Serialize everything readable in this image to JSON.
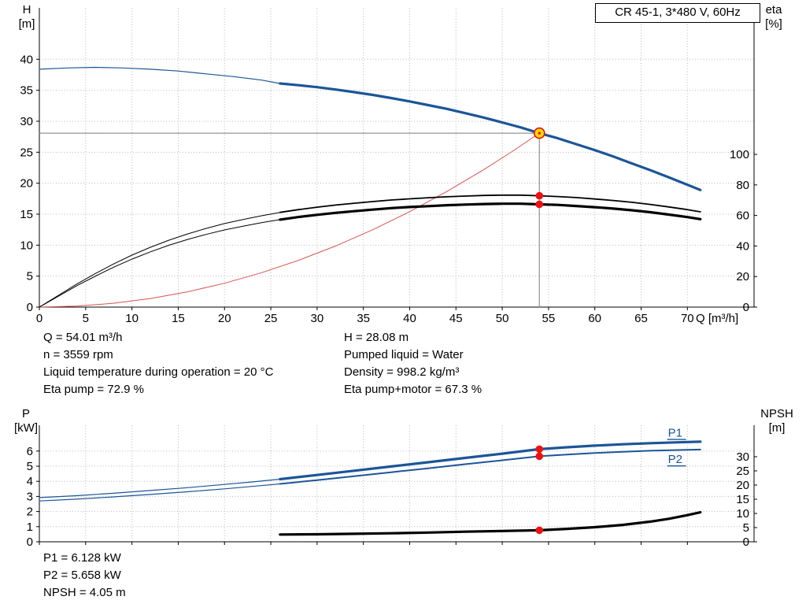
{
  "title_box": {
    "text": "CR 45-1, 3*480 V, 60Hz"
  },
  "colors": {
    "curve_blue": "#1c5598",
    "curve_black": "#000000",
    "system_red": "#d9534f",
    "dot_red": "#ee1111",
    "duty_fill": "#ffd800",
    "duty_ring": "#e01010",
    "duty_line_gray": "#7a7a7a",
    "grid": "#b8b8b8",
    "axis": "#000000"
  },
  "info_top": {
    "left": [
      "Q = 54.01 m³/h",
      "n = 3559 rpm",
      "Liquid temperature during operation = 20 °C",
      "Eta pump = 72.9 %"
    ],
    "right": [
      "H = 28.08 m",
      "Pumped liquid = Water",
      "Density = 998.2 kg/m³",
      "Eta pump+motor = 67.3 %"
    ]
  },
  "info_bottom": [
    "P1 = 6.128 kW",
    "P2 = 5.658 kW",
    "NPSH = 4.05 m"
  ],
  "chart_data": [
    {
      "type": "line",
      "name": "head-and-efficiency-chart",
      "title": "CR 45-1, 3*480 V, 60Hz",
      "duty_point": {
        "Q": 54.01,
        "H": 28.08,
        "eta_pump": 72.9,
        "eta_pump_motor": 67.3
      },
      "x": {
        "label": "Q [m³/h]",
        "min": 0,
        "max": 77.2,
        "ticks": [
          0,
          5,
          10,
          15,
          20,
          25,
          30,
          35,
          40,
          45,
          50,
          55,
          60,
          65,
          70
        ],
        "show_labels": true
      },
      "yl": {
        "label_line1": "H",
        "label_line2": "[m]",
        "min": 0,
        "max": 48.3,
        "ticks": [
          0,
          5,
          10,
          15,
          20,
          25,
          30,
          35,
          40
        ]
      },
      "yr": {
        "label_line1": "eta",
        "label_line2": "[%]",
        "min": 0,
        "max": 195.9,
        "ticks": [
          0,
          20,
          40,
          60,
          80,
          100
        ]
      },
      "series": [
        {
          "name": "duty-head-line",
          "axis": "yl",
          "color": "#7a7a7a",
          "width": 1,
          "points": [
            [
              0,
              28.08
            ],
            [
              54.01,
              28.08
            ]
          ]
        },
        {
          "name": "duty-flow-line",
          "axis": "yl",
          "color": "#7a7a7a",
          "width": 1,
          "points": [
            [
              54.01,
              0
            ],
            [
              54.01,
              28.08
            ]
          ]
        },
        {
          "name": "system-curve",
          "axis": "yl",
          "color": "#d9534f",
          "width": 1,
          "points": [
            [
              0,
              0
            ],
            [
              4,
              0.15
            ],
            [
              8,
              0.62
            ],
            [
              12,
              1.39
            ],
            [
              16,
              2.46
            ],
            [
              20,
              3.85
            ],
            [
              24,
              5.55
            ],
            [
              28,
              7.55
            ],
            [
              32,
              9.86
            ],
            [
              36,
              12.48
            ],
            [
              40,
              15.41
            ],
            [
              44,
              18.64
            ],
            [
              48,
              22.19
            ],
            [
              51,
              25.04
            ],
            [
              54.01,
              28.08
            ]
          ]
        },
        {
          "name": "eta-pump-curve-low",
          "axis": "yr",
          "color": "#000000",
          "width": 1,
          "points": [
            [
              0,
              0
            ],
            [
              2,
              7.5
            ],
            [
              4,
              14.9
            ],
            [
              6,
              21.8
            ],
            [
              8,
              28.2
            ],
            [
              10,
              34.0
            ],
            [
              12,
              39.2
            ],
            [
              14,
              43.8
            ],
            [
              16,
              47.9
            ],
            [
              18,
              51.5
            ],
            [
              20,
              54.7
            ],
            [
              22,
              57.4
            ],
            [
              24,
              59.8
            ],
            [
              26,
              62.0
            ]
          ]
        },
        {
          "name": "eta-pump-motor-curve-low",
          "axis": "yr",
          "color": "#000000",
          "width": 1,
          "points": [
            [
              0,
              0
            ],
            [
              2,
              6.9
            ],
            [
              4,
              13.8
            ],
            [
              6,
              20.1
            ],
            [
              8,
              26.1
            ],
            [
              10,
              31.4
            ],
            [
              12,
              36.2
            ],
            [
              14,
              40.5
            ],
            [
              16,
              44.3
            ],
            [
              18,
              47.6
            ],
            [
              20,
              50.5
            ],
            [
              22,
              53.0
            ],
            [
              24,
              55.3
            ],
            [
              26,
              57.3
            ]
          ]
        },
        {
          "name": "eta-pump-curve",
          "axis": "yr",
          "color": "#000000",
          "width": 1.8,
          "points": [
            [
              26,
              62.0
            ],
            [
              28,
              63.8
            ],
            [
              30,
              65.4
            ],
            [
              32,
              66.8
            ],
            [
              34,
              68.0
            ],
            [
              36,
              69.1
            ],
            [
              38,
              70.1
            ],
            [
              40,
              70.9
            ],
            [
              42,
              71.6
            ],
            [
              44,
              72.2
            ],
            [
              46,
              72.7
            ],
            [
              48,
              73.1
            ],
            [
              50,
              73.3
            ],
            [
              52,
              73.3
            ],
            [
              54.01,
              72.9
            ],
            [
              56,
              72.4
            ],
            [
              58,
              71.7
            ],
            [
              60,
              70.8
            ],
            [
              62,
              69.8
            ],
            [
              64,
              68.6
            ],
            [
              66,
              67.2
            ],
            [
              68,
              65.6
            ],
            [
              70,
              63.8
            ],
            [
              71.4,
              62.4
            ]
          ]
        },
        {
          "name": "eta-pump-motor-curve",
          "axis": "yr",
          "color": "#000000",
          "width": 3.2,
          "points": [
            [
              26,
              57.3
            ],
            [
              28,
              59.0
            ],
            [
              30,
              60.4
            ],
            [
              32,
              61.7
            ],
            [
              34,
              62.8
            ],
            [
              36,
              63.8
            ],
            [
              38,
              64.8
            ],
            [
              40,
              65.5
            ],
            [
              42,
              66.1
            ],
            [
              44,
              66.7
            ],
            [
              46,
              67.1
            ],
            [
              48,
              67.5
            ],
            [
              50,
              67.7
            ],
            [
              52,
              67.7
            ],
            [
              54.01,
              67.3
            ],
            [
              56,
              66.9
            ],
            [
              58,
              66.2
            ],
            [
              60,
              65.4
            ],
            [
              62,
              64.5
            ],
            [
              64,
              63.4
            ],
            [
              66,
              62.1
            ],
            [
              68,
              60.6
            ],
            [
              70,
              58.9
            ],
            [
              71.4,
              57.6
            ]
          ]
        },
        {
          "name": "head-curve-low",
          "axis": "yl",
          "color": "#1c5598",
          "width": 1.2,
          "points": [
            [
              0,
              38.4
            ],
            [
              3,
              38.6
            ],
            [
              6,
              38.7
            ],
            [
              9,
              38.6
            ],
            [
              12,
              38.4
            ],
            [
              15,
              38.1
            ],
            [
              18,
              37.65
            ],
            [
              21,
              37.2
            ],
            [
              24,
              36.65
            ],
            [
              26,
              36.1
            ]
          ]
        },
        {
          "name": "head-curve",
          "axis": "yl",
          "color": "#1c5598",
          "width": 3.2,
          "points": [
            [
              26,
              36.1
            ],
            [
              28,
              35.82
            ],
            [
              30,
              35.5
            ],
            [
              32,
              35.12
            ],
            [
              34,
              34.7
            ],
            [
              36,
              34.25
            ],
            [
              38,
              33.75
            ],
            [
              40,
              33.2
            ],
            [
              42,
              32.6
            ],
            [
              44,
              32.0
            ],
            [
              46,
              31.3
            ],
            [
              48,
              30.6
            ],
            [
              50,
              29.8
            ],
            [
              52,
              29.0
            ],
            [
              54.01,
              28.08
            ],
            [
              56,
              27.25
            ],
            [
              58,
              26.3
            ],
            [
              60,
              25.35
            ],
            [
              62,
              24.3
            ],
            [
              64,
              23.2
            ],
            [
              66,
              22.1
            ],
            [
              68,
              20.95
            ],
            [
              70,
              19.75
            ],
            [
              71.4,
              18.9
            ]
          ]
        }
      ],
      "markers": [
        {
          "type": "dot",
          "q": 54.01,
          "v": 72.9,
          "axis": "yr"
        },
        {
          "type": "dot",
          "q": 54.01,
          "v": 67.3,
          "axis": "yr"
        },
        {
          "type": "duty",
          "q": 54.01,
          "v": 28.08,
          "axis": "yl"
        }
      ],
      "labels": []
    },
    {
      "type": "line",
      "name": "power-and-npsh-chart",
      "duty_point": {
        "Q": 54.01,
        "P1_kW": 6.128,
        "P2_kW": 5.658,
        "NPSH_m": 4.05
      },
      "x": {
        "label": "",
        "min": 0,
        "max": 77.2,
        "ticks": [
          0,
          5,
          10,
          15,
          20,
          25,
          30,
          35,
          40,
          45,
          50,
          55,
          60,
          65,
          70
        ],
        "show_labels": false
      },
      "yl": {
        "label_line1": "P",
        "label_line2": "[kW]",
        "min": 0,
        "max": 7.71,
        "ticks": [
          0,
          1,
          2,
          3,
          4,
          5,
          6
        ]
      },
      "yr": {
        "label_line1": "NPSH",
        "label_line2": "[m]",
        "min": 0,
        "max": 41.1,
        "ticks": [
          0,
          5,
          10,
          15,
          20,
          25,
          30
        ]
      },
      "series": [
        {
          "name": "p2-curve-low",
          "axis": "yl",
          "color": "#1c5598",
          "width": 1.2,
          "points": [
            [
              0,
              2.7
            ],
            [
              4,
              2.82
            ],
            [
              8,
              2.97
            ],
            [
              12,
              3.13
            ],
            [
              16,
              3.31
            ],
            [
              20,
              3.5
            ],
            [
              23,
              3.66
            ],
            [
              26,
              3.83
            ]
          ]
        },
        {
          "name": "p1-curve-low",
          "axis": "yl",
          "color": "#1c5598",
          "width": 1.2,
          "points": [
            [
              0,
              2.92
            ],
            [
              4,
              3.05
            ],
            [
              8,
              3.21
            ],
            [
              12,
              3.39
            ],
            [
              16,
              3.58
            ],
            [
              20,
              3.79
            ],
            [
              23,
              3.96
            ],
            [
              26,
              4.14
            ]
          ]
        },
        {
          "name": "p2-curve",
          "axis": "yl",
          "color": "#1c5598",
          "width": 2,
          "points": [
            [
              26,
              3.83
            ],
            [
              30,
              4.08
            ],
            [
              34,
              4.34
            ],
            [
              38,
              4.6
            ],
            [
              42,
              4.86
            ],
            [
              46,
              5.13
            ],
            [
              50,
              5.39
            ],
            [
              54.01,
              5.658
            ],
            [
              57,
              5.77
            ],
            [
              60,
              5.87
            ],
            [
              63,
              5.95
            ],
            [
              66,
              6.02
            ],
            [
              69,
              6.07
            ],
            [
              71.4,
              6.1
            ]
          ]
        },
        {
          "name": "p1-curve",
          "axis": "yl",
          "color": "#1c5598",
          "width": 3.2,
          "points": [
            [
              26,
              4.14
            ],
            [
              30,
              4.42
            ],
            [
              34,
              4.7
            ],
            [
              38,
              4.98
            ],
            [
              42,
              5.26
            ],
            [
              46,
              5.55
            ],
            [
              50,
              5.83
            ],
            [
              54.01,
              6.128
            ],
            [
              57,
              6.25
            ],
            [
              60,
              6.36
            ],
            [
              63,
              6.45
            ],
            [
              66,
              6.52
            ],
            [
              69,
              6.58
            ],
            [
              71.4,
              6.62
            ]
          ]
        },
        {
          "name": "npsh-curve",
          "axis": "yr",
          "color": "#000000",
          "width": 3.2,
          "points": [
            [
              26,
              2.55
            ],
            [
              30,
              2.65
            ],
            [
              34,
              2.8
            ],
            [
              38,
              3.0
            ],
            [
              42,
              3.25
            ],
            [
              46,
              3.55
            ],
            [
              50,
              3.8
            ],
            [
              54.01,
              4.05
            ],
            [
              57,
              4.55
            ],
            [
              60,
              5.15
            ],
            [
              63,
              5.95
            ],
            [
              66,
              7.1
            ],
            [
              68,
              8.1
            ],
            [
              70,
              9.4
            ],
            [
              71.4,
              10.4
            ]
          ]
        }
      ],
      "markers": [
        {
          "type": "dot",
          "q": 54.01,
          "v": 6.128,
          "axis": "yl"
        },
        {
          "type": "dot",
          "q": 54.01,
          "v": 5.658,
          "axis": "yl"
        },
        {
          "type": "dot",
          "q": 54.01,
          "v": 4.05,
          "axis": "yr"
        }
      ],
      "labels": [
        {
          "text": "P1",
          "q": 67.9,
          "v": 6.95,
          "axis": "yl",
          "color": "#1c5598",
          "underline": true
        },
        {
          "text": "P2",
          "q": 67.9,
          "v": 5.2,
          "axis": "yl",
          "color": "#1c5598",
          "underline": true
        }
      ]
    }
  ]
}
